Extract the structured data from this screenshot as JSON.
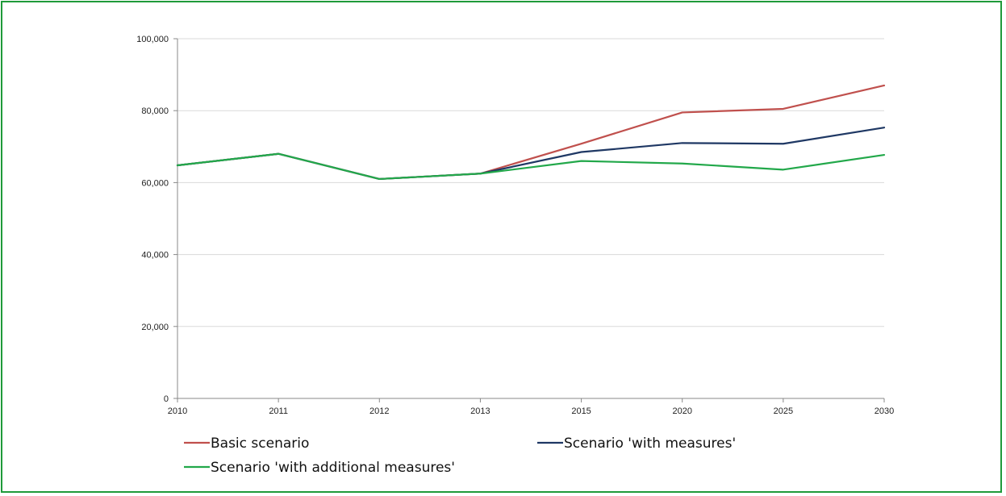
{
  "chart_data": {
    "type": "line",
    "categories": [
      "2010",
      "2011",
      "2012",
      "2013",
      "2015",
      "2020",
      "2025",
      "2030"
    ],
    "ylim": [
      0,
      100000
    ],
    "yticks": [
      "0",
      "20,000",
      "40,000",
      "60,000",
      "80,000",
      "100,000"
    ],
    "grid": true,
    "legend_position": "bottom",
    "series": [
      {
        "name": "Basic scenario",
        "color": "#c0504d",
        "values": [
          64800,
          68000,
          61000,
          62500,
          70800,
          79500,
          80500,
          87000
        ]
      },
      {
        "name": "Scenario 'with measures'",
        "color": "#1f3864",
        "values": [
          64800,
          68000,
          61000,
          62500,
          68500,
          71000,
          70800,
          75300
        ]
      },
      {
        "name": "Scenario 'with additional measures'",
        "color": "#22a84a",
        "values": [
          64800,
          68000,
          61000,
          62500,
          66000,
          65300,
          63600,
          67700
        ]
      }
    ]
  }
}
